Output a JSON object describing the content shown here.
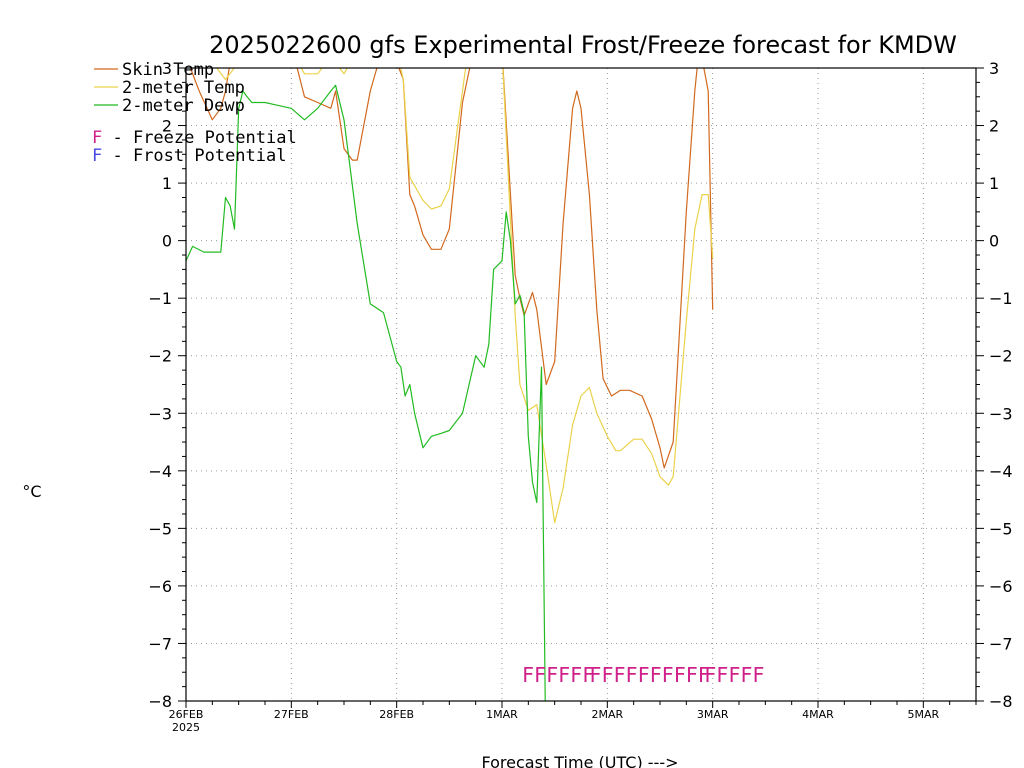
{
  "chart_data": {
    "type": "line",
    "title": "2025022600 gfs Experimental Frost/Freeze forecast for KMDW",
    "xlabel": "Forecast Time (UTC) --->",
    "ylabel": "°C",
    "ylim": [
      -8,
      3
    ],
    "xlim": [
      0,
      7.5
    ],
    "y_ticks": [
      "−8",
      "−7",
      "−6",
      "−5",
      "−4",
      "−3",
      "−2",
      "−1",
      "0",
      "1",
      "2",
      "3"
    ],
    "x_ticks": [
      {
        "label": "26FEB",
        "sub": "2025",
        "day": 0
      },
      {
        "label": "27FEB",
        "sub": "",
        "day": 1
      },
      {
        "label": "28FEB",
        "sub": "",
        "day": 2
      },
      {
        "label": "1MAR",
        "sub": "",
        "day": 3
      },
      {
        "label": "2MAR",
        "sub": "",
        "day": 4
      },
      {
        "label": "3MAR",
        "sub": "",
        "day": 5
      },
      {
        "label": "4MAR",
        "sub": "",
        "day": 6
      },
      {
        "label": "5MAR",
        "sub": "",
        "day": 7
      }
    ],
    "grid": true,
    "legend_position": "top-left",
    "series": [
      {
        "name": "Skin Temp",
        "color": "#d2691e",
        "points": [
          [
            0.0,
            3.2
          ],
          [
            0.125,
            2.6
          ],
          [
            0.25,
            2.1
          ],
          [
            0.33,
            2.3
          ],
          [
            0.375,
            2.6
          ],
          [
            0.42,
            3.1
          ],
          [
            0.5,
            3.3
          ],
          [
            0.58,
            3.2
          ],
          [
            0.625,
            3.1
          ],
          [
            0.75,
            3.4
          ],
          [
            0.875,
            3.3
          ],
          [
            1.0,
            3.4
          ],
          [
            1.125,
            2.5
          ],
          [
            1.25,
            2.4
          ],
          [
            1.375,
            2.3
          ],
          [
            1.42,
            2.6
          ],
          [
            1.5,
            1.6
          ],
          [
            1.58,
            1.4
          ],
          [
            1.625,
            1.4
          ],
          [
            1.75,
            2.6
          ],
          [
            1.875,
            3.4
          ],
          [
            2.0,
            3.1
          ],
          [
            2.0625,
            2.8
          ],
          [
            2.125,
            0.8
          ],
          [
            2.17,
            0.6
          ],
          [
            2.25,
            0.1
          ],
          [
            2.33,
            -0.15
          ],
          [
            2.42,
            -0.15
          ],
          [
            2.5,
            0.2
          ],
          [
            2.625,
            2.4
          ],
          [
            2.75,
            3.5
          ],
          [
            3.0,
            3.3
          ],
          [
            3.125,
            -0.6
          ],
          [
            3.17,
            -1.0
          ],
          [
            3.21,
            -1.3
          ],
          [
            3.25,
            -1.1
          ],
          [
            3.29,
            -0.9
          ],
          [
            3.33,
            -1.2
          ],
          [
            3.42,
            -2.5
          ],
          [
            3.5,
            -2.1
          ],
          [
            3.58,
            0.3
          ],
          [
            3.67,
            2.3
          ],
          [
            3.71,
            2.6
          ],
          [
            3.75,
            2.3
          ],
          [
            3.83,
            0.8
          ],
          [
            3.9,
            -1.2
          ],
          [
            3.96,
            -2.4
          ],
          [
            4.04,
            -2.7
          ],
          [
            4.125,
            -2.6
          ],
          [
            4.21,
            -2.6
          ],
          [
            4.33,
            -2.7
          ],
          [
            4.42,
            -3.1
          ],
          [
            4.5,
            -3.6
          ],
          [
            4.54,
            -3.95
          ],
          [
            4.625,
            -3.5
          ],
          [
            4.75,
            0.5
          ],
          [
            4.83,
            2.6
          ],
          [
            4.875,
            3.4
          ],
          [
            4.958,
            2.6
          ],
          [
            5.0,
            -1.2
          ]
        ]
      },
      {
        "name": "2-meter Temp",
        "color": "#ebd24b",
        "points": [
          [
            0.0,
            3.2
          ],
          [
            0.25,
            3.1
          ],
          [
            0.375,
            2.8
          ],
          [
            0.5,
            3.1
          ],
          [
            0.75,
            3.3
          ],
          [
            1.0,
            3.3
          ],
          [
            1.125,
            2.9
          ],
          [
            1.25,
            2.9
          ],
          [
            1.375,
            3.2
          ],
          [
            1.5,
            2.9
          ],
          [
            1.625,
            3.3
          ],
          [
            1.75,
            3.4
          ],
          [
            2.0,
            3.3
          ],
          [
            2.0625,
            2.8
          ],
          [
            2.125,
            1.1
          ],
          [
            2.25,
            0.7
          ],
          [
            2.33,
            0.55
          ],
          [
            2.42,
            0.6
          ],
          [
            2.5,
            0.9
          ],
          [
            2.58,
            2.0
          ],
          [
            2.67,
            3.2
          ],
          [
            3.0,
            3.3
          ],
          [
            3.125,
            -1.3
          ],
          [
            3.17,
            -2.5
          ],
          [
            3.25,
            -2.95
          ],
          [
            3.33,
            -2.85
          ],
          [
            3.42,
            -3.9
          ],
          [
            3.5,
            -4.9
          ],
          [
            3.58,
            -4.3
          ],
          [
            3.67,
            -3.2
          ],
          [
            3.75,
            -2.7
          ],
          [
            3.83,
            -2.55
          ],
          [
            3.9,
            -3.0
          ],
          [
            4.0,
            -3.4
          ],
          [
            4.08,
            -3.65
          ],
          [
            4.125,
            -3.65
          ],
          [
            4.25,
            -3.45
          ],
          [
            4.33,
            -3.45
          ],
          [
            4.42,
            -3.7
          ],
          [
            4.5,
            -4.1
          ],
          [
            4.58,
            -4.25
          ],
          [
            4.625,
            -4.1
          ],
          [
            4.75,
            -1.4
          ],
          [
            4.83,
            0.2
          ],
          [
            4.9,
            0.8
          ],
          [
            4.958,
            0.8
          ],
          [
            5.0,
            -0.3
          ]
        ]
      },
      {
        "name": "2-meter Dewp",
        "color": "#22bb22",
        "points": [
          [
            0.0,
            -0.35
          ],
          [
            0.0625,
            -0.1
          ],
          [
            0.17,
            -0.2
          ],
          [
            0.25,
            -0.2
          ],
          [
            0.33,
            -0.2
          ],
          [
            0.375,
            0.75
          ],
          [
            0.42,
            0.6
          ],
          [
            0.46,
            0.2
          ],
          [
            0.5,
            2.3
          ],
          [
            0.54,
            2.6
          ],
          [
            0.58,
            2.5
          ],
          [
            0.625,
            2.4
          ],
          [
            0.75,
            2.4
          ],
          [
            0.875,
            2.35
          ],
          [
            1.0,
            2.3
          ],
          [
            1.125,
            2.1
          ],
          [
            1.25,
            2.3
          ],
          [
            1.375,
            2.6
          ],
          [
            1.42,
            2.7
          ],
          [
            1.5,
            2.1
          ],
          [
            1.625,
            0.3
          ],
          [
            1.75,
            -1.1
          ],
          [
            1.875,
            -1.25
          ],
          [
            2.0,
            -2.1
          ],
          [
            2.04,
            -2.2
          ],
          [
            2.08,
            -2.7
          ],
          [
            2.125,
            -2.5
          ],
          [
            2.17,
            -3.0
          ],
          [
            2.25,
            -3.6
          ],
          [
            2.33,
            -3.4
          ],
          [
            2.42,
            -3.35
          ],
          [
            2.5,
            -3.3
          ],
          [
            2.625,
            -3.0
          ],
          [
            2.75,
            -2.0
          ],
          [
            2.83,
            -2.2
          ],
          [
            2.875,
            -1.8
          ],
          [
            2.92,
            -0.5
          ],
          [
            3.0,
            -0.35
          ],
          [
            3.04,
            0.5
          ],
          [
            3.08,
            0.0
          ],
          [
            3.125,
            -1.1
          ],
          [
            3.17,
            -0.95
          ],
          [
            3.21,
            -1.25
          ],
          [
            3.25,
            -3.4
          ],
          [
            3.29,
            -4.2
          ],
          [
            3.33,
            -4.55
          ],
          [
            3.375,
            -2.2
          ],
          [
            3.42,
            -9.5
          ]
        ]
      }
    ],
    "flags": [
      {
        "label": "FFFFFF",
        "day": 3.19,
        "color": "#d0208a"
      },
      {
        "label": "FFFFFFFFFF",
        "day": 3.83,
        "color": "#d0208a"
      },
      {
        "label": "FFFFF",
        "day": 4.92,
        "color": "#d0208a"
      }
    ],
    "flag_value": -7.55,
    "legend": [
      {
        "label": "Skin Temp",
        "color": "#d2691e",
        "kind": "line"
      },
      {
        "label": "2-meter Temp",
        "color": "#ebd24b",
        "kind": "line"
      },
      {
        "label": "2-meter Dewp",
        "color": "#22bb22",
        "kind": "line"
      },
      {
        "marker": "F",
        "label": " - Freeze Potential",
        "color": "#d0208a",
        "kind": "text"
      },
      {
        "marker": "F",
        "label": " - Frost Potential",
        "color": "#4a4ae0",
        "kind": "text"
      }
    ]
  }
}
